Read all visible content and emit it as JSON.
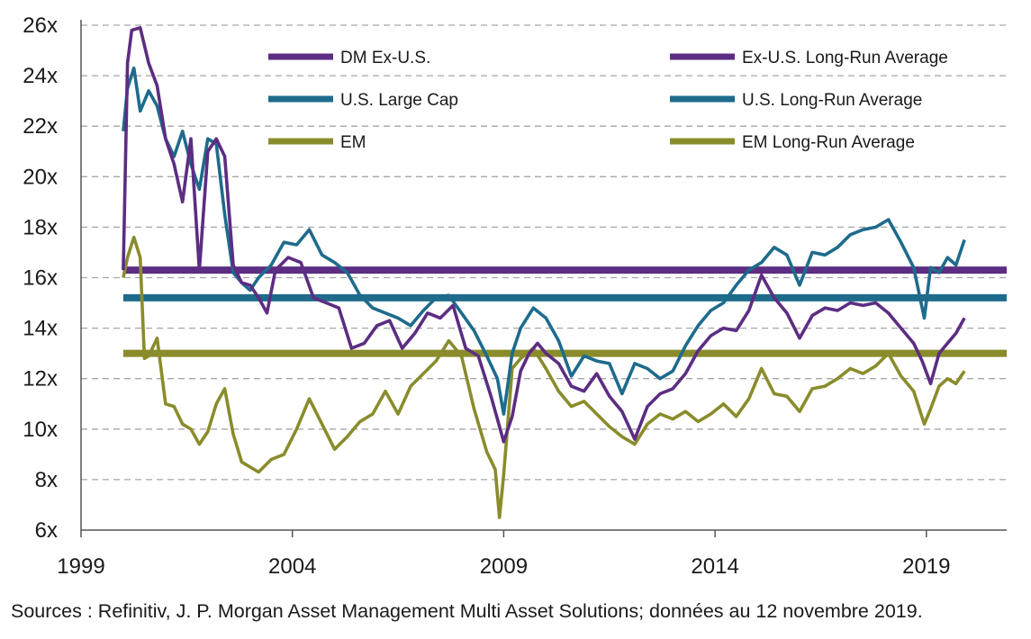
{
  "chart_data": {
    "type": "line",
    "title": "",
    "xlabel": "",
    "ylabel": "",
    "xlim": [
      1999,
      2020.9
    ],
    "ylim": [
      6,
      26
    ],
    "x_ticks": [
      1999,
      2004,
      2009,
      2014,
      2019
    ],
    "x_tick_labels": [
      "1999",
      "2004",
      "2009",
      "2014",
      "2019"
    ],
    "y_ticks": [
      6,
      8,
      10,
      12,
      14,
      16,
      18,
      20,
      22,
      24,
      26
    ],
    "y_tick_labels": [
      "6x",
      "8x",
      "10x",
      "12x",
      "14x",
      "16x",
      "18x",
      "20x",
      "22x",
      "24x",
      "26x"
    ],
    "grid": "horizontal dashed",
    "legend_position": "top, inside plot, two columns",
    "series": [
      {
        "name": "DM Ex-U.S.",
        "color": "#5c2d82",
        "x": [
          2000.0,
          2000.1,
          2000.2,
          2000.4,
          2000.6,
          2000.8,
          2001.0,
          2001.2,
          2001.4,
          2001.6,
          2001.8,
          2002.0,
          2002.2,
          2002.4,
          2002.6,
          2002.8,
          2003.0,
          2003.2,
          2003.4,
          2003.6,
          2003.9,
          2004.2,
          2004.5,
          2004.8,
          2005.1,
          2005.4,
          2005.7,
          2006.0,
          2006.3,
          2006.6,
          2006.9,
          2007.2,
          2007.5,
          2007.8,
          2008.1,
          2008.4,
          2008.7,
          2008.85,
          2009.0,
          2009.2,
          2009.4,
          2009.6,
          2009.8,
          2010.0,
          2010.3,
          2010.6,
          2010.9,
          2011.2,
          2011.5,
          2011.8,
          2012.1,
          2012.4,
          2012.7,
          2013.0,
          2013.3,
          2013.6,
          2013.9,
          2014.2,
          2014.5,
          2014.8,
          2015.1,
          2015.4,
          2015.7,
          2016.0,
          2016.3,
          2016.6,
          2016.9,
          2017.2,
          2017.5,
          2017.8,
          2018.1,
          2018.4,
          2018.7,
          2018.9,
          2019.1,
          2019.3,
          2019.5,
          2019.7,
          2019.9
        ],
        "y": [
          16.3,
          24.5,
          25.8,
          25.9,
          24.5,
          23.6,
          21.5,
          20.5,
          19.0,
          21.5,
          16.3,
          21.0,
          21.5,
          20.8,
          16.5,
          15.8,
          15.7,
          15.2,
          14.6,
          16.3,
          16.8,
          16.6,
          15.2,
          15.0,
          14.8,
          13.2,
          13.4,
          14.1,
          14.3,
          13.2,
          13.8,
          14.6,
          14.4,
          14.9,
          13.2,
          12.9,
          11.3,
          10.4,
          9.5,
          10.5,
          12.3,
          13.0,
          13.4,
          13.0,
          12.6,
          11.7,
          11.5,
          12.2,
          11.3,
          10.7,
          9.6,
          10.9,
          11.4,
          11.6,
          12.2,
          13.1,
          13.7,
          14.0,
          13.9,
          14.7,
          16.1,
          15.2,
          14.6,
          13.6,
          14.5,
          14.8,
          14.7,
          15.0,
          14.9,
          15.0,
          14.6,
          14.0,
          13.4,
          12.7,
          11.8,
          13.0,
          13.4,
          13.8,
          14.4
        ]
      },
      {
        "name": "U.S. Large Cap",
        "color": "#1e6b8c",
        "x": [
          2000.0,
          2000.1,
          2000.25,
          2000.4,
          2000.6,
          2000.8,
          2001.0,
          2001.2,
          2001.4,
          2001.6,
          2001.8,
          2002.0,
          2002.2,
          2002.4,
          2002.6,
          2002.8,
          2003.0,
          2003.2,
          2003.5,
          2003.8,
          2004.1,
          2004.4,
          2004.7,
          2005.0,
          2005.3,
          2005.6,
          2005.9,
          2006.2,
          2006.5,
          2006.8,
          2007.1,
          2007.4,
          2007.7,
          2008.0,
          2008.3,
          2008.6,
          2008.85,
          2009.0,
          2009.2,
          2009.4,
          2009.7,
          2010.0,
          2010.3,
          2010.6,
          2010.9,
          2011.2,
          2011.5,
          2011.8,
          2012.1,
          2012.4,
          2012.7,
          2013.0,
          2013.3,
          2013.6,
          2013.9,
          2014.2,
          2014.5,
          2014.8,
          2015.1,
          2015.4,
          2015.7,
          2016.0,
          2016.3,
          2016.6,
          2016.9,
          2017.2,
          2017.5,
          2017.8,
          2018.1,
          2018.4,
          2018.7,
          2018.95,
          2019.1,
          2019.3,
          2019.5,
          2019.7,
          2019.9
        ],
        "y": [
          21.8,
          23.5,
          24.3,
          22.6,
          23.4,
          22.8,
          21.5,
          20.8,
          21.8,
          20.5,
          19.5,
          21.5,
          21.3,
          18.5,
          16.2,
          15.8,
          15.5,
          16.0,
          16.5,
          17.4,
          17.3,
          17.9,
          16.9,
          16.6,
          16.2,
          15.3,
          14.8,
          14.6,
          14.4,
          14.1,
          14.7,
          15.2,
          15.3,
          14.6,
          13.9,
          12.9,
          12.0,
          10.6,
          13.0,
          14.0,
          14.8,
          14.4,
          13.5,
          12.1,
          12.9,
          12.7,
          12.6,
          11.4,
          12.6,
          12.4,
          12.0,
          12.3,
          13.3,
          14.1,
          14.7,
          15.0,
          15.7,
          16.3,
          16.6,
          17.2,
          16.9,
          15.7,
          17.0,
          16.9,
          17.2,
          17.7,
          17.9,
          18.0,
          18.3,
          17.4,
          16.4,
          14.4,
          16.4,
          16.2,
          16.8,
          16.5,
          17.5
        ]
      },
      {
        "name": "EM",
        "color": "#8a8c2c",
        "x": [
          2000.0,
          2000.1,
          2000.25,
          2000.4,
          2000.5,
          2000.6,
          2000.8,
          2001.0,
          2001.2,
          2001.4,
          2001.6,
          2001.8,
          2002.0,
          2002.2,
          2002.4,
          2002.6,
          2002.8,
          2003.0,
          2003.2,
          2003.5,
          2003.8,
          2004.1,
          2004.4,
          2004.7,
          2005.0,
          2005.3,
          2005.6,
          2005.9,
          2006.2,
          2006.5,
          2006.8,
          2007.1,
          2007.4,
          2007.7,
          2008.0,
          2008.3,
          2008.6,
          2008.8,
          2008.9,
          2009.0,
          2009.2,
          2009.4,
          2009.7,
          2010.0,
          2010.3,
          2010.6,
          2010.9,
          2011.2,
          2011.5,
          2011.8,
          2012.1,
          2012.4,
          2012.7,
          2013.0,
          2013.3,
          2013.6,
          2013.9,
          2014.2,
          2014.5,
          2014.8,
          2015.1,
          2015.4,
          2015.7,
          2016.0,
          2016.3,
          2016.6,
          2016.9,
          2017.2,
          2017.5,
          2017.8,
          2018.1,
          2018.4,
          2018.7,
          2018.95,
          2019.1,
          2019.3,
          2019.5,
          2019.7,
          2019.9
        ],
        "y": [
          16.0,
          16.8,
          17.6,
          16.8,
          12.8,
          12.9,
          13.6,
          11.0,
          10.9,
          10.2,
          10.0,
          9.4,
          9.9,
          11.0,
          11.6,
          9.8,
          8.7,
          8.5,
          8.3,
          8.8,
          9.0,
          10.0,
          11.2,
          10.2,
          9.2,
          9.7,
          10.3,
          10.6,
          11.5,
          10.6,
          11.7,
          12.2,
          12.7,
          13.5,
          12.9,
          10.8,
          9.1,
          8.4,
          6.5,
          8.2,
          12.4,
          12.8,
          13.2,
          12.4,
          11.5,
          10.9,
          11.1,
          10.6,
          10.1,
          9.7,
          9.4,
          10.2,
          10.6,
          10.4,
          10.7,
          10.3,
          10.6,
          11.0,
          10.5,
          11.2,
          12.4,
          11.4,
          11.3,
          10.7,
          11.6,
          11.7,
          12.0,
          12.4,
          12.2,
          12.5,
          13.0,
          12.1,
          11.5,
          10.2,
          10.8,
          11.7,
          12.0,
          11.8,
          12.3
        ]
      },
      {
        "name": "Ex-U.S. Long-Run Average",
        "color": "#5c2d82",
        "x": [
          2000.0,
          2020.9
        ],
        "y": [
          16.3,
          16.3
        ]
      },
      {
        "name": "U.S. Long-Run Average",
        "color": "#1e6b8c",
        "x": [
          2000.0,
          2020.9
        ],
        "y": [
          15.2,
          15.2
        ]
      },
      {
        "name": "EM Long-Run Average",
        "color": "#8a8c2c",
        "x": [
          2000.0,
          2020.9
        ],
        "y": [
          13.0,
          13.0
        ]
      }
    ]
  },
  "source_note": "Sources : Refinitiv, J. P. Morgan Asset Management Multi Asset Solutions; données au 12 novembre 2019."
}
